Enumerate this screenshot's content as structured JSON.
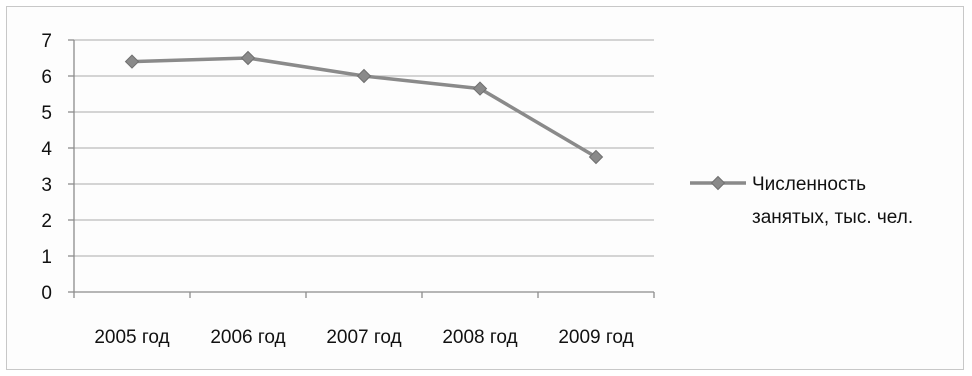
{
  "chart_data": {
    "type": "line",
    "categories": [
      "2005 год",
      "2006 год",
      "2007 год",
      "2008 год",
      "2009 год"
    ],
    "series": [
      {
        "name": "Численность занятых, тыс. чел.",
        "name_lines": [
          "Численность",
          "занятых, тыс. чел."
        ],
        "values": [
          6.4,
          6.5,
          6.0,
          5.65,
          3.75
        ]
      }
    ],
    "title": "",
    "xlabel": "",
    "ylabel": "",
    "ylim": [
      0,
      7
    ],
    "yticks": [
      0,
      1,
      2,
      3,
      4,
      5,
      6,
      7
    ],
    "grid": true,
    "legend": "right",
    "colors": {
      "series": "#8a8a8a",
      "marker": "#8a8a8a",
      "grid": "#bdbdbd",
      "axis": "#8c8c8c",
      "text": "#111111"
    }
  }
}
